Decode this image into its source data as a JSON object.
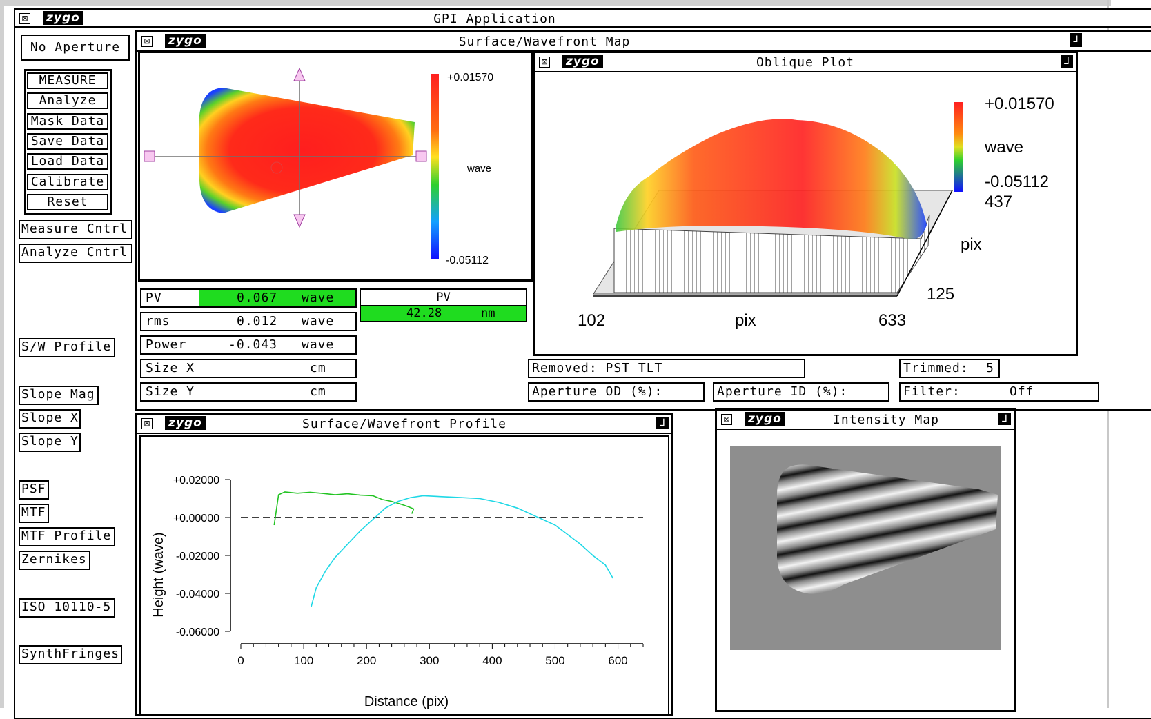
{
  "app": {
    "title": "GPI Application",
    "logo": "zygo"
  },
  "sidebar": {
    "aperture": "No Aperture",
    "main_buttons": [
      "MEASURE",
      "Analyze",
      "Mask Data",
      "Save Data",
      "Load Data",
      "Calibrate",
      "Reset"
    ],
    "ctrl_buttons": [
      "Measure Cntrl",
      "Analyze Cntrl"
    ],
    "sw_profile": "S/W Profile",
    "slope_buttons": [
      "Slope Mag",
      "Slope X",
      "Slope Y"
    ],
    "analysis_buttons": [
      "PSF",
      "MTF",
      "MTF Profile",
      "Zernikes"
    ],
    "iso": "ISO 10110-5",
    "synth": "SynthFringes"
  },
  "surface_map": {
    "title": "Surface/Wavefront Map",
    "scale_max": "+0.01570",
    "scale_min": "-0.05112",
    "scale_unit": "wave"
  },
  "oblique": {
    "title": "Oblique Plot",
    "scale_max": "+0.01570",
    "scale_min": "-0.05112",
    "scale_unit": "wave",
    "x_start": "102",
    "x_end": "633",
    "x_unit": "pix",
    "y_start": "125",
    "y_end": "437",
    "y_unit": "pix"
  },
  "results": {
    "pv": {
      "label": "PV",
      "value": "0.067",
      "unit": "wave"
    },
    "rms": {
      "label": "rms",
      "value": "0.012",
      "unit": "wave"
    },
    "power": {
      "label": "Power",
      "value": "-0.043",
      "unit": "wave"
    },
    "size_x": {
      "label": "Size X",
      "value": "",
      "unit": "cm"
    },
    "size_y": {
      "label": "Size Y",
      "value": "",
      "unit": "cm"
    },
    "pv_nm": {
      "label": "PV",
      "value": "42.28",
      "unit": "nm"
    }
  },
  "status": {
    "removed": "Removed: PST TLT",
    "trimmed_label": "Trimmed:",
    "trimmed_value": "5",
    "aperture_od": "Aperture OD (%):",
    "aperture_id": "Aperture ID (%):",
    "filter_label": "Filter:",
    "filter_value": "Off"
  },
  "profile": {
    "title": "Surface/Wavefront Profile"
  },
  "intensity": {
    "title": "Intensity Map"
  },
  "chart_data": {
    "type": "line",
    "title": "",
    "xlabel": "Distance (pix)",
    "ylabel": "Height (wave)",
    "xlim": [
      0,
      640
    ],
    "ylim": [
      -0.06,
      0.02
    ],
    "xticks": [
      0,
      100,
      200,
      300,
      400,
      500,
      600
    ],
    "yticks": [
      "+0.02000",
      "+0.00000",
      "-0.02000",
      "-0.04000",
      "-0.06000"
    ],
    "ytick_values": [
      0.02,
      0.0,
      -0.02,
      -0.04,
      -0.06
    ],
    "reference_line": 0.0,
    "series": [
      {
        "color": "#22c322",
        "x": [
          53,
          60,
          70,
          90,
          110,
          130,
          150,
          170,
          190,
          210,
          225,
          240,
          255,
          268,
          275,
          272
        ],
        "y": [
          -0.004,
          0.012,
          0.0135,
          0.0128,
          0.0133,
          0.0127,
          0.012,
          0.0125,
          0.0118,
          0.0115,
          0.0095,
          0.0085,
          0.007,
          0.0055,
          0.0045,
          0.002
        ]
      },
      {
        "color": "#1fd8e6",
        "x": [
          112,
          120,
          135,
          150,
          170,
          190,
          210,
          230,
          250,
          270,
          290,
          320,
          350,
          380,
          410,
          440,
          460,
          480,
          500,
          520,
          540,
          560,
          580,
          592
        ],
        "y": [
          -0.047,
          -0.037,
          -0.028,
          -0.021,
          -0.014,
          -0.007,
          -0.001,
          0.005,
          0.0085,
          0.0105,
          0.0115,
          0.011,
          0.0105,
          0.01,
          0.008,
          0.005,
          0.002,
          -0.001,
          -0.004,
          -0.009,
          -0.014,
          -0.02,
          -0.025,
          -0.032
        ]
      }
    ]
  }
}
